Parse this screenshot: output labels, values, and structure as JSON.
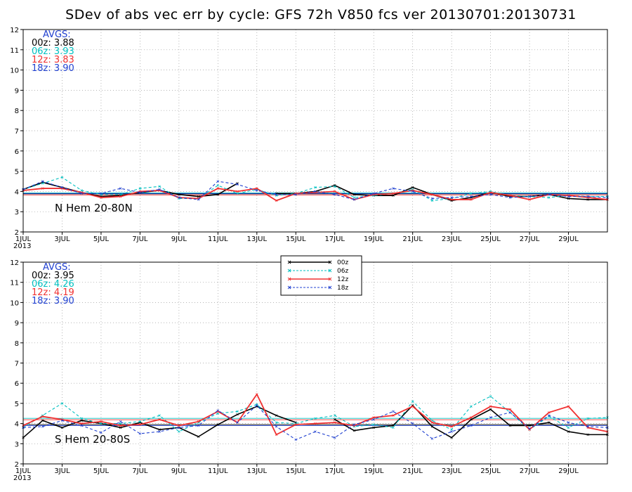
{
  "title": "SDev of abs vec err by cycle: GFS 72h V850 fcs ver 20130701:20130731",
  "colors": {
    "00z": "#000000",
    "06z": "#00c0c0",
    "12z": "#f03030",
    "18z": "#2040d0"
  },
  "chart_data": [
    {
      "type": "line",
      "region": "N Hem 20-80N",
      "avgs_label": "AVGS:",
      "avgs": [
        {
          "cycle": "00z",
          "value": "3.88"
        },
        {
          "cycle": "06z",
          "value": "3.93"
        },
        {
          "cycle": "12z",
          "value": "3.83"
        },
        {
          "cycle": "18z",
          "value": "3.90"
        }
      ],
      "ylim": [
        2,
        12
      ],
      "yticks": [
        2,
        3,
        4,
        5,
        6,
        7,
        8,
        9,
        10,
        11,
        12
      ],
      "xlim": [
        1,
        31
      ],
      "xticks": [
        {
          "x": 1,
          "label": "1JUL"
        },
        {
          "x": 3,
          "label": "3JUL"
        },
        {
          "x": 5,
          "label": "5JUL"
        },
        {
          "x": 7,
          "label": "7JUL"
        },
        {
          "x": 9,
          "label": "9JUL"
        },
        {
          "x": 11,
          "label": "11JUL"
        },
        {
          "x": 13,
          "label": "13JUL"
        },
        {
          "x": 15,
          "label": "15JUL"
        },
        {
          "x": 17,
          "label": "17JUL"
        },
        {
          "x": 19,
          "label": "19JUL"
        },
        {
          "x": 21,
          "label": "21JUL"
        },
        {
          "x": 23,
          "label": "23JUL"
        },
        {
          "x": 25,
          "label": "25JUL"
        },
        {
          "x": 27,
          "label": "27JUL"
        },
        {
          "x": 29,
          "label": "29JUL"
        }
      ],
      "year_label": "2013",
      "series": [
        {
          "name": "00z",
          "x": [
            1,
            2,
            3,
            4,
            5,
            6,
            7,
            8,
            9,
            10,
            11,
            12,
            null,
            14,
            15,
            16,
            17,
            18,
            19,
            20,
            21,
            22,
            23,
            24,
            25,
            26,
            27,
            28,
            29,
            30,
            31
          ],
          "values": [
            4.1,
            4.45,
            4.2,
            3.95,
            3.75,
            3.8,
            3.95,
            4.05,
            3.85,
            3.75,
            3.85,
            4.4,
            null,
            3.9,
            3.9,
            4.0,
            4.3,
            3.85,
            3.8,
            3.8,
            4.2,
            3.85,
            3.55,
            3.7,
            3.95,
            3.75,
            3.75,
            3.85,
            3.65,
            3.6,
            3.6
          ]
        },
        {
          "name": "06z",
          "x": [
            1,
            2,
            3,
            4,
            5,
            6,
            7,
            8,
            9,
            10,
            11,
            12,
            13,
            14,
            15,
            16,
            17,
            18,
            19,
            20,
            21,
            22,
            23,
            24,
            25,
            26,
            27,
            28,
            29,
            30,
            31
          ],
          "values": [
            4.1,
            4.4,
            4.7,
            4.05,
            3.85,
            3.85,
            4.15,
            4.25,
            3.65,
            3.65,
            4.3,
            3.9,
            4.1,
            3.8,
            3.9,
            4.2,
            4.25,
            3.7,
            3.8,
            3.9,
            4.1,
            3.55,
            3.65,
            3.9,
            4.0,
            3.8,
            3.75,
            3.7,
            3.8,
            3.75,
            3.75
          ]
        },
        {
          "name": "12z",
          "x": [
            1,
            2,
            3,
            4,
            5,
            6,
            7,
            8,
            9,
            10,
            11,
            12,
            13,
            14,
            15,
            16,
            17,
            18,
            19,
            20,
            21,
            22,
            23,
            24,
            25,
            26,
            27,
            28,
            29,
            30,
            31
          ],
          "values": [
            4.05,
            4.15,
            4.15,
            3.95,
            3.7,
            3.75,
            4.0,
            4.05,
            3.7,
            3.65,
            4.15,
            4.0,
            4.15,
            3.55,
            3.9,
            3.95,
            4.0,
            3.6,
            3.85,
            3.9,
            4.05,
            3.85,
            3.6,
            3.6,
            3.95,
            3.8,
            3.6,
            3.85,
            3.8,
            3.7,
            3.6
          ]
        },
        {
          "name": "18z",
          "x": [
            1,
            2,
            3,
            4,
            5,
            6,
            7,
            8,
            9,
            10,
            11,
            12,
            13,
            14,
            15,
            16,
            17,
            18,
            19,
            20,
            21,
            22,
            23,
            24,
            25,
            26,
            27,
            28,
            29,
            30,
            31
          ],
          "values": [
            4.1,
            4.5,
            4.2,
            3.9,
            3.9,
            4.15,
            3.95,
            4.1,
            3.7,
            3.6,
            4.5,
            4.35,
            4.05,
            3.85,
            3.85,
            4.0,
            3.85,
            3.6,
            3.9,
            4.15,
            4.0,
            3.65,
            3.7,
            3.75,
            3.85,
            3.7,
            3.75,
            3.85,
            3.75,
            3.75,
            3.7
          ]
        }
      ]
    },
    {
      "type": "line",
      "region": "S Hem 20-80S",
      "avgs_label": "AVGS:",
      "avgs": [
        {
          "cycle": "00z",
          "value": "3.95"
        },
        {
          "cycle": "06z",
          "value": "4.26"
        },
        {
          "cycle": "12z",
          "value": "4.19"
        },
        {
          "cycle": "18z",
          "value": "3.90"
        }
      ],
      "ylim": [
        2,
        12
      ],
      "yticks": [
        2,
        3,
        4,
        5,
        6,
        7,
        8,
        9,
        10,
        11,
        12
      ],
      "xlim": [
        1,
        31
      ],
      "xticks": [
        {
          "x": 1,
          "label": "1JUL"
        },
        {
          "x": 3,
          "label": "3JUL"
        },
        {
          "x": 5,
          "label": "5JUL"
        },
        {
          "x": 7,
          "label": "7JUL"
        },
        {
          "x": 9,
          "label": "9JUL"
        },
        {
          "x": 11,
          "label": "11JUL"
        },
        {
          "x": 13,
          "label": "13JUL"
        },
        {
          "x": 15,
          "label": "15JUL"
        },
        {
          "x": 17,
          "label": "17JUL"
        },
        {
          "x": 19,
          "label": "19JUL"
        },
        {
          "x": 21,
          "label": "21JUL"
        },
        {
          "x": 23,
          "label": "23JUL"
        },
        {
          "x": 25,
          "label": "25JUL"
        },
        {
          "x": 27,
          "label": "27JUL"
        },
        {
          "x": 29,
          "label": "29JUL"
        }
      ],
      "year_label": "2013",
      "legend": [
        {
          "cycle": "00z",
          "label": "00z",
          "dashed": false
        },
        {
          "cycle": "06z",
          "label": "06z",
          "dashed": true
        },
        {
          "cycle": "12z",
          "label": "12z",
          "dashed": false
        },
        {
          "cycle": "18z",
          "label": "18z",
          "dashed": true
        }
      ],
      "series": [
        {
          "name": "00z",
          "x": [
            1,
            2,
            3,
            4,
            5,
            6,
            7,
            8,
            9,
            10,
            11,
            12,
            13,
            14,
            15,
            16,
            17,
            18,
            19,
            20,
            21,
            22,
            23,
            24,
            25,
            26,
            27,
            28,
            29,
            30,
            31
          ],
          "values": [
            3.3,
            4.15,
            3.8,
            4.15,
            4.0,
            3.8,
            4.05,
            3.7,
            3.8,
            3.35,
            3.95,
            4.45,
            4.85,
            4.4,
            4.05,
            null,
            4.2,
            3.65,
            3.8,
            3.9,
            4.9,
            3.85,
            3.3,
            4.2,
            4.7,
            3.9,
            3.9,
            4.05,
            3.6,
            3.45,
            3.45
          ]
        },
        {
          "name": "06z",
          "x": [
            1,
            2,
            3,
            4,
            5,
            6,
            7,
            8,
            9,
            10,
            11,
            12,
            13,
            14,
            15,
            16,
            17,
            18,
            19,
            20,
            21,
            22,
            23,
            24,
            25,
            26,
            27,
            28,
            29,
            30,
            31
          ],
          "values": [
            3.8,
            4.4,
            5.0,
            4.25,
            4.0,
            4.0,
            4.1,
            4.4,
            3.6,
            4.05,
            4.5,
            4.6,
            4.95,
            4.05,
            4.0,
            4.25,
            4.4,
            3.85,
            3.95,
            3.8,
            5.1,
            4.15,
            3.7,
            4.85,
            5.35,
            4.55,
            3.7,
            4.35,
            3.8,
            4.25,
            4.3
          ]
        },
        {
          "name": "12z",
          "x": [
            1,
            2,
            3,
            4,
            5,
            6,
            7,
            8,
            9,
            10,
            11,
            12,
            13,
            14,
            15,
            16,
            17,
            18,
            19,
            20,
            21,
            22,
            23,
            24,
            25,
            26,
            27,
            28,
            29,
            30,
            31
          ],
          "values": [
            3.9,
            4.35,
            4.2,
            4.0,
            4.1,
            3.9,
            3.95,
            4.2,
            3.9,
            4.1,
            4.6,
            4.05,
            5.45,
            3.45,
            3.95,
            4.0,
            4.05,
            3.9,
            4.3,
            4.4,
            4.85,
            4.05,
            3.85,
            4.3,
            4.85,
            4.7,
            3.7,
            4.55,
            4.85,
            3.8,
            3.6
          ]
        },
        {
          "name": "18z",
          "x": [
            1,
            2,
            3,
            4,
            5,
            6,
            7,
            8,
            9,
            10,
            11,
            12,
            13,
            14,
            15,
            16,
            17,
            18,
            19,
            20,
            21,
            22,
            23,
            24,
            25,
            26,
            27,
            28,
            29,
            30,
            31
          ],
          "values": [
            3.8,
            3.85,
            4.15,
            3.9,
            3.55,
            4.1,
            3.5,
            3.6,
            3.8,
            3.9,
            4.65,
            4.05,
            4.9,
            3.85,
            3.2,
            3.6,
            3.3,
            3.95,
            4.2,
            4.6,
            4.0,
            3.25,
            3.6,
            3.9,
            4.3,
            4.55,
            3.75,
            4.4,
            4.05,
            3.85,
            3.8
          ]
        }
      ]
    }
  ]
}
